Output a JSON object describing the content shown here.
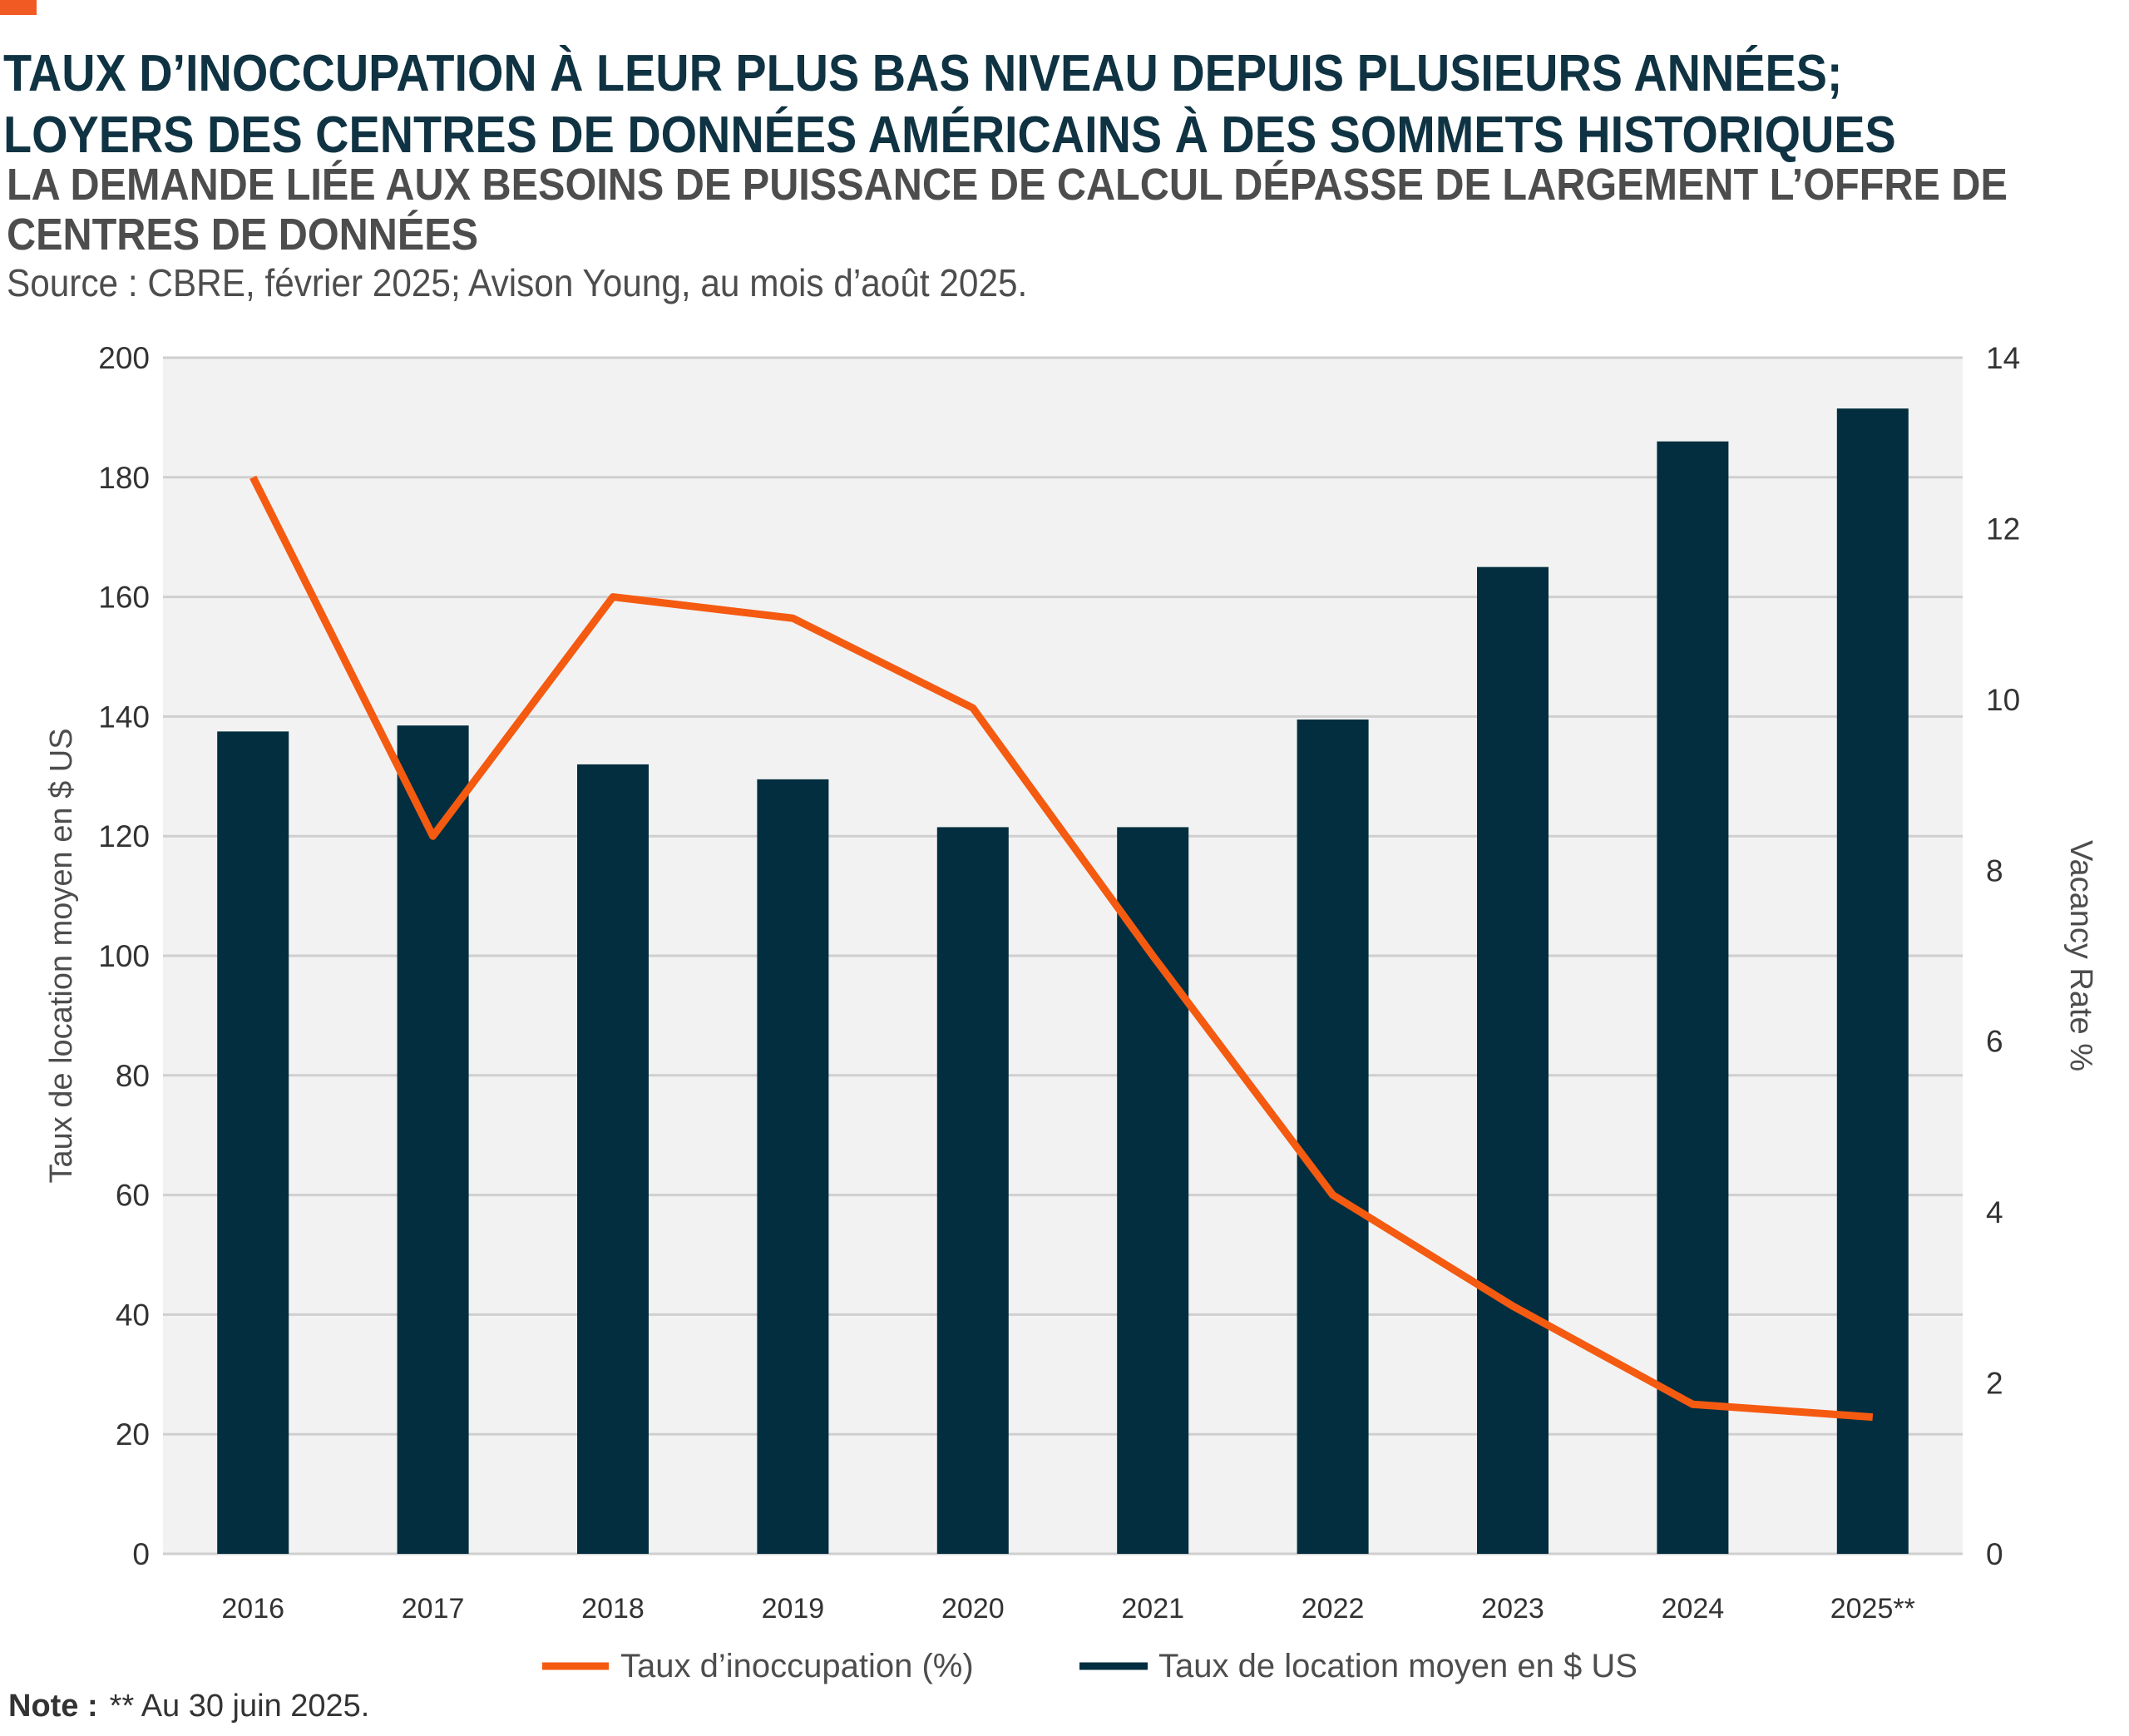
{
  "header": {
    "title_line1": "TAUX D’INOCCUPATION À LEUR PLUS BAS NIVEAU DEPUIS PLUSIEURS ANNÉES;",
    "title_line2": "LOYERS DES CENTRES DE DONNÉES AMÉRICAINS À DES SOMMETS HISTORIQUES",
    "subtitle_line1": "LA DEMANDE LIÉE AUX BESOINS DE PUISSANCE DE CALCUL DÉPASSE DE LARGEMENT L’OFFRE DE",
    "subtitle_line2": "CENTRES DE DONNÉES",
    "source": "Source : CBRE, février 2025; Avison Young, au mois d’août 2025."
  },
  "colors": {
    "accent": "#f15a22",
    "bar": "#032e3f",
    "line": "#f55a11",
    "plot_bg": "#f2f2f2",
    "grid": "#cfcfcf"
  },
  "chart_data": {
    "type": "bar",
    "categories": [
      "2016",
      "2017",
      "2018",
      "2019",
      "2020",
      "2021",
      "2022",
      "2023",
      "2024",
      "2025**"
    ],
    "series": [
      {
        "name": "Taux de location moyen en $ US",
        "type": "bar",
        "axis": "left",
        "values": [
          137.5,
          138.5,
          132,
          129.5,
          121.5,
          121.5,
          139.5,
          165,
          186,
          191.5
        ]
      },
      {
        "name": "Taux d’inoccupation (%)",
        "type": "line",
        "axis": "right",
        "values": [
          12.6,
          8.4,
          11.2,
          10.95,
          9.9,
          7.0,
          4.2,
          2.9,
          1.75,
          1.6
        ]
      }
    ],
    "ylabel": "Taux de location moyen en $ US",
    "ylim": [
      0,
      200
    ],
    "yticks": [
      "0",
      "20",
      "40",
      "60",
      "80",
      "100",
      "120",
      "140",
      "160",
      "180",
      "200"
    ],
    "y2label": "Vacancy Rate %",
    "y2lim": [
      0,
      14
    ],
    "y2ticks": [
      "0",
      "2",
      "4",
      "6",
      "8",
      "10",
      "12",
      "14"
    ],
    "grid": true,
    "legend_position": "bottom-center",
    "legend": [
      "Taux d’inoccupation (%)",
      "Taux de location moyen en $ US"
    ]
  },
  "footer": {
    "note_label": "Note :",
    "note_text": "** Au 30 juin 2025."
  }
}
